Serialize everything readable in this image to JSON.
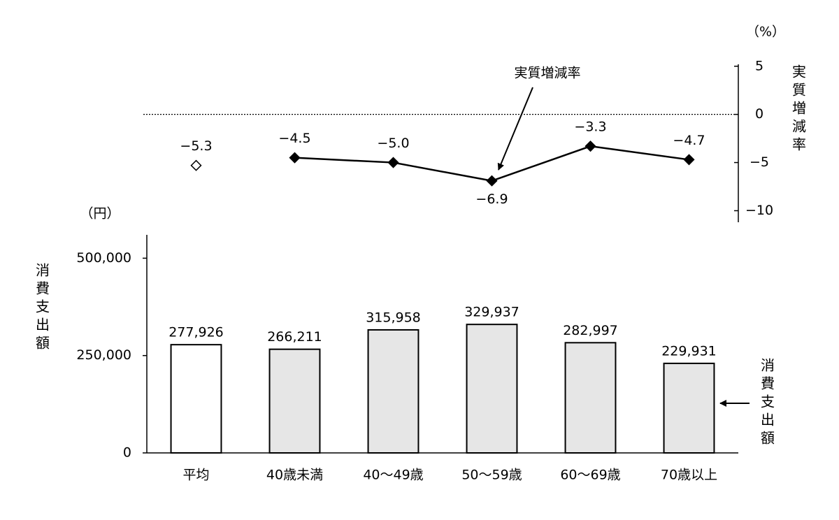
{
  "chart_data": {
    "type": "bar",
    "categories": [
      "平均",
      "40歳未満",
      "40～49歳",
      "50～59歳",
      "60～69歳",
      "70歳以上"
    ],
    "series": [
      {
        "name": "消費支出額",
        "type": "bar",
        "colors": [
          "#ffffff",
          "#e6e6e6",
          "#e6e6e6",
          "#e6e6e6",
          "#e6e6e6",
          "#e6e6e6"
        ],
        "values": [
          277926,
          266211,
          315958,
          329937,
          282997,
          229931
        ],
        "value_labels": [
          "277,926",
          "266,211",
          "315,958",
          "329,937",
          "282,997",
          "229,931"
        ]
      },
      {
        "name": "実質増減率",
        "type": "line",
        "axis": "y2",
        "color": "#000000",
        "marker_fills": [
          "#ffffff",
          "#000000",
          "#000000",
          "#000000",
          "#000000",
          "#000000"
        ],
        "line_from": 1,
        "values": [
          -5.3,
          -4.5,
          -5.0,
          -6.9,
          -3.3,
          -4.7
        ],
        "value_labels": [
          "−5.3",
          "−4.5",
          "−5.0",
          "−6.9",
          "−3.3",
          "−4.7"
        ]
      }
    ],
    "y_label": "消費支出額",
    "y_unit": "（円）",
    "y2_label": "実質増減率",
    "y2_unit": "（%）",
    "ylim": [
      0,
      560000
    ],
    "yticks": [
      0,
      {
        "value": 250000,
        "label": "250,000"
      },
      {
        "value": 500000,
        "label": "500,000"
      }
    ],
    "y2lim": [
      -11.2,
      5.2
    ],
    "y2ticks": [
      5,
      0,
      {
        "value": -5,
        "label": "−5"
      },
      {
        "value": -10,
        "label": "−10"
      }
    ]
  }
}
